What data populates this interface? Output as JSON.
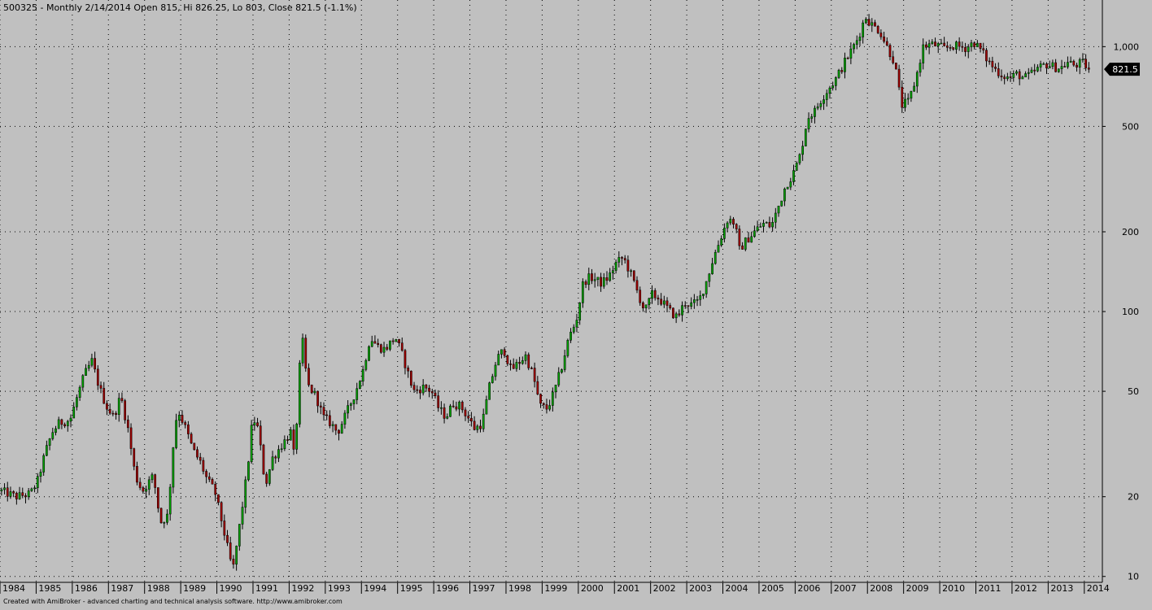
{
  "header": {
    "title": "500325 - Monthly 2/14/2014 Open 815, Hi 826.25, Lo 803, Close 821.5 (-1.1%)"
  },
  "footer": {
    "credit": "Created with AmiBroker - advanced charting and technical analysis software. http://www.amibroker.com"
  },
  "colors": {
    "background": "#c0c0c0",
    "up": "#00a000",
    "down": "#a00000",
    "wick": "#000000",
    "grid": "#000000",
    "last_price_bg": "#000000",
    "last_price_fg": "#ffffff"
  },
  "chart_data": {
    "type": "candlestick",
    "yscale": "log",
    "grid": true,
    "ylim": [
      9.5,
      1500
    ],
    "xlim": [
      1984.0,
      2014.5
    ],
    "y_ticks": [
      {
        "value": 10,
        "label": "10"
      },
      {
        "value": 20,
        "label": "20"
      },
      {
        "value": 50,
        "label": "50"
      },
      {
        "value": 100,
        "label": "100"
      },
      {
        "value": 200,
        "label": "200"
      },
      {
        "value": 500,
        "label": "500"
      },
      {
        "value": 1000,
        "label": "1,000"
      }
    ],
    "x_ticks": [
      "1984",
      "1985",
      "1986",
      "1987",
      "1988",
      "1989",
      "1990",
      "1991",
      "1992",
      "1993",
      "1994",
      "1995",
      "1996",
      "1997",
      "1998",
      "1999",
      "2000",
      "2001",
      "2002",
      "2003",
      "2004",
      "2005",
      "2006",
      "2007",
      "2008",
      "2009",
      "2010",
      "2011",
      "2012",
      "2013",
      "2014"
    ],
    "last_price": {
      "value": 821.5,
      "label": "821.5"
    },
    "series_note": "monthly closes, one per month from Jan 1984",
    "anchors": [
      [
        1984.0,
        21
      ],
      [
        1984.4,
        20
      ],
      [
        1984.8,
        20.5
      ],
      [
        1985.0,
        23
      ],
      [
        1985.2,
        29
      ],
      [
        1985.4,
        35
      ],
      [
        1985.6,
        38
      ],
      [
        1985.9,
        39
      ],
      [
        1986.1,
        48
      ],
      [
        1986.3,
        58
      ],
      [
        1986.5,
        65
      ],
      [
        1986.7,
        52
      ],
      [
        1986.9,
        44
      ],
      [
        1987.1,
        40
      ],
      [
        1987.3,
        48
      ],
      [
        1987.5,
        36
      ],
      [
        1987.7,
        24
      ],
      [
        1987.9,
        21
      ],
      [
        1988.0,
        22
      ],
      [
        1988.2,
        24
      ],
      [
        1988.4,
        16
      ],
      [
        1988.6,
        17
      ],
      [
        1988.8,
        38
      ],
      [
        1988.9,
        42
      ],
      [
        1989.1,
        36
      ],
      [
        1989.3,
        30
      ],
      [
        1989.5,
        27
      ],
      [
        1989.7,
        23
      ],
      [
        1989.9,
        21
      ],
      [
        1990.1,
        16
      ],
      [
        1990.3,
        12
      ],
      [
        1990.4,
        10.5
      ],
      [
        1990.6,
        16
      ],
      [
        1990.8,
        25
      ],
      [
        1990.95,
        40
      ],
      [
        1991.1,
        36
      ],
      [
        1991.3,
        22
      ],
      [
        1991.5,
        28
      ],
      [
        1991.8,
        32
      ],
      [
        1992.0,
        35
      ],
      [
        1992.1,
        28
      ],
      [
        1992.2,
        45
      ],
      [
        1992.3,
        85
      ],
      [
        1992.4,
        62
      ],
      [
        1992.5,
        52
      ],
      [
        1992.7,
        48
      ],
      [
        1992.9,
        40
      ],
      [
        1993.1,
        38
      ],
      [
        1993.3,
        35
      ],
      [
        1993.5,
        40
      ],
      [
        1993.8,
        50
      ],
      [
        1994.0,
        60
      ],
      [
        1994.2,
        80
      ],
      [
        1994.4,
        74
      ],
      [
        1994.6,
        72
      ],
      [
        1994.9,
        80
      ],
      [
        1995.1,
        68
      ],
      [
        1995.4,
        50
      ],
      [
        1995.7,
        52
      ],
      [
        1995.9,
        50
      ],
      [
        1996.1,
        43
      ],
      [
        1996.3,
        40
      ],
      [
        1996.5,
        45
      ],
      [
        1996.7,
        44
      ],
      [
        1996.9,
        40
      ],
      [
        1997.1,
        36
      ],
      [
        1997.3,
        38
      ],
      [
        1997.5,
        52
      ],
      [
        1997.7,
        66
      ],
      [
        1997.9,
        72
      ],
      [
        1998.1,
        60
      ],
      [
        1998.3,
        64
      ],
      [
        1998.5,
        68
      ],
      [
        1998.7,
        58
      ],
      [
        1998.9,
        44
      ],
      [
        1999.1,
        43
      ],
      [
        1999.3,
        50
      ],
      [
        1999.5,
        62
      ],
      [
        1999.7,
        80
      ],
      [
        1999.9,
        92
      ],
      [
        2000.1,
        130
      ],
      [
        2000.3,
        135
      ],
      [
        2000.6,
        128
      ],
      [
        2000.8,
        135
      ],
      [
        2001.0,
        152
      ],
      [
        2001.2,
        160
      ],
      [
        2001.4,
        140
      ],
      [
        2001.6,
        118
      ],
      [
        2001.8,
        100
      ],
      [
        2002.0,
        116
      ],
      [
        2002.2,
        112
      ],
      [
        2002.5,
        100
      ],
      [
        2002.7,
        95
      ],
      [
        2002.9,
        108
      ],
      [
        2003.1,
        106
      ],
      [
        2003.3,
        110
      ],
      [
        2003.5,
        130
      ],
      [
        2003.7,
        160
      ],
      [
        2003.9,
        190
      ],
      [
        2004.1,
        225
      ],
      [
        2004.3,
        215
      ],
      [
        2004.4,
        170
      ],
      [
        2004.6,
        185
      ],
      [
        2004.9,
        205
      ],
      [
        2005.1,
        215
      ],
      [
        2005.3,
        210
      ],
      [
        2005.5,
        250
      ],
      [
        2005.7,
        300
      ],
      [
        2005.9,
        330
      ],
      [
        2006.1,
        390
      ],
      [
        2006.3,
        540
      ],
      [
        2006.5,
        570
      ],
      [
        2006.7,
        640
      ],
      [
        2006.9,
        700
      ],
      [
        2007.1,
        760
      ],
      [
        2007.3,
        860
      ],
      [
        2007.5,
        960
      ],
      [
        2007.7,
        1080
      ],
      [
        2007.9,
        1300
      ],
      [
        2008.1,
        1200
      ],
      [
        2008.3,
        1150
      ],
      [
        2008.5,
        1000
      ],
      [
        2008.7,
        880
      ],
      [
        2008.9,
        600
      ],
      [
        2009.1,
        620
      ],
      [
        2009.3,
        760
      ],
      [
        2009.5,
        1000
      ],
      [
        2009.7,
        1020
      ],
      [
        2009.9,
        1010
      ],
      [
        2010.1,
        980
      ],
      [
        2010.3,
        1010
      ],
      [
        2010.5,
        1000
      ],
      [
        2010.7,
        990
      ],
      [
        2010.9,
        1040
      ],
      [
        2011.1,
        970
      ],
      [
        2011.3,
        880
      ],
      [
        2011.5,
        820
      ],
      [
        2011.7,
        780
      ],
      [
        2011.9,
        760
      ],
      [
        2012.1,
        790
      ],
      [
        2012.3,
        760
      ],
      [
        2012.5,
        790
      ],
      [
        2012.7,
        830
      ],
      [
        2012.9,
        860
      ],
      [
        2013.1,
        840
      ],
      [
        2013.3,
        830
      ],
      [
        2013.5,
        870
      ],
      [
        2013.7,
        850
      ],
      [
        2013.9,
        870
      ],
      [
        2014.1,
        821.5
      ]
    ],
    "candle_count": 362
  }
}
